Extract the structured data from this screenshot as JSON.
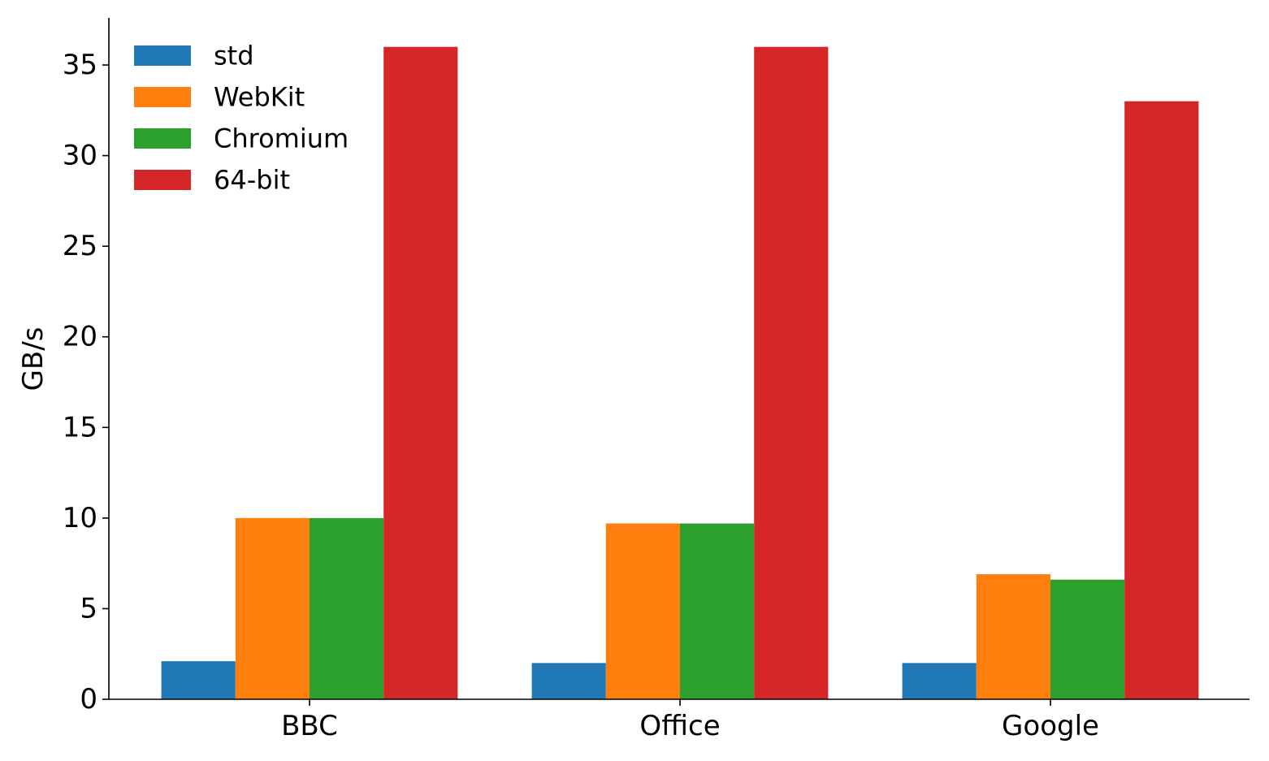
{
  "chart_data": {
    "type": "bar",
    "title": "",
    "xlabel": "",
    "ylabel": "GB/s",
    "categories": [
      "BBC",
      "Office",
      "Google"
    ],
    "series": [
      {
        "name": "std",
        "color": "#1f77b4",
        "values": [
          2.1,
          2.0,
          2.0
        ]
      },
      {
        "name": "WebKit",
        "color": "#ff7f0e",
        "values": [
          10.0,
          9.7,
          6.9
        ]
      },
      {
        "name": "Chromium",
        "color": "#2ca02c",
        "values": [
          10.0,
          9.7,
          6.6
        ]
      },
      {
        "name": "64-bit",
        "color": "#d62728",
        "values": [
          36.0,
          36.0,
          33.0
        ]
      }
    ],
    "ylim": [
      0,
      37.6
    ],
    "yticks": [
      0,
      5,
      10,
      15,
      20,
      25,
      30,
      35
    ],
    "grid": false,
    "legend_position": "top-left"
  }
}
